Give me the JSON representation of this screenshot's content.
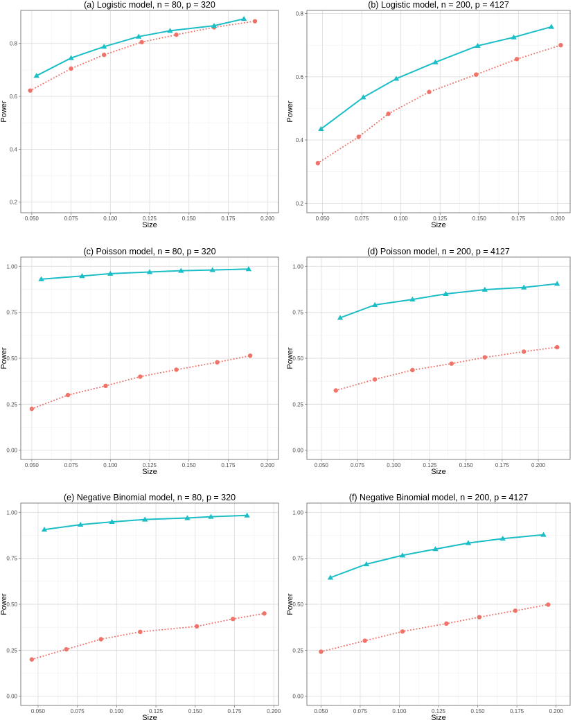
{
  "colors": {
    "series_a": "#1bbec6",
    "series_b": "#f0736a"
  },
  "chart_data": [
    {
      "type": "line",
      "title": "(a) Logistic model, n = 80, p = 320",
      "xlabel": "Size",
      "ylabel": "Power",
      "xlim": [
        0.043,
        0.207
      ],
      "ylim": [
        0.16,
        0.925
      ],
      "xticks": [
        0.05,
        0.075,
        0.1,
        0.125,
        0.15,
        0.175,
        0.2
      ],
      "xtick_labels": [
        "0.050",
        "0.075",
        "0.100",
        "0.125",
        "0.150",
        "0.175",
        "0.200"
      ],
      "yticks": [
        0.2,
        0.4,
        0.6,
        0.8
      ],
      "ytick_labels": [
        "0.2",
        "0.4",
        "0.6",
        "0.8"
      ],
      "series": [
        {
          "marker": "triangle",
          "line": "solid",
          "x": [
            0.053,
            0.075,
            0.096,
            0.118,
            0.138,
            0.166,
            0.185
          ],
          "y": [
            0.678,
            0.745,
            0.788,
            0.826,
            0.848,
            0.867,
            0.893
          ]
        },
        {
          "marker": "circle",
          "line": "dotted",
          "x": [
            0.049,
            0.075,
            0.096,
            0.12,
            0.142,
            0.166,
            0.192
          ],
          "y": [
            0.622,
            0.705,
            0.757,
            0.805,
            0.833,
            0.861,
            0.884
          ]
        }
      ]
    },
    {
      "type": "line",
      "title": "(b) Logistic model, n = 200, p = 4127",
      "xlabel": "Size",
      "ylabel": "Power",
      "xlim": [
        0.04,
        0.208
      ],
      "ylim": [
        0.17,
        0.81
      ],
      "xticks": [
        0.05,
        0.075,
        0.1,
        0.125,
        0.15,
        0.175,
        0.2
      ],
      "xtick_labels": [
        "0.050",
        "0.075",
        "0.100",
        "0.125",
        "0.150",
        "0.175",
        "0.200"
      ],
      "yticks": [
        0.2,
        0.4,
        0.6,
        0.8
      ],
      "ytick_labels": [
        "0.2",
        "0.4",
        "0.6",
        "0.8"
      ],
      "series": [
        {
          "marker": "triangle",
          "line": "solid",
          "x": [
            0.049,
            0.076,
            0.097,
            0.122,
            0.149,
            0.172,
            0.196
          ],
          "y": [
            0.435,
            0.535,
            0.594,
            0.646,
            0.698,
            0.725,
            0.758
          ]
        },
        {
          "marker": "circle",
          "line": "dotted",
          "x": [
            0.047,
            0.073,
            0.092,
            0.118,
            0.148,
            0.174,
            0.202
          ],
          "y": [
            0.327,
            0.41,
            0.483,
            0.552,
            0.607,
            0.656,
            0.7
          ]
        }
      ]
    },
    {
      "type": "line",
      "title": "(c) Poisson model, n = 80, p = 320",
      "xlabel": "Size",
      "ylabel": "Power",
      "xlim": [
        0.043,
        0.207
      ],
      "ylim": [
        -0.05,
        1.05
      ],
      "xticks": [
        0.05,
        0.075,
        0.1,
        0.125,
        0.15,
        0.175,
        0.2
      ],
      "xtick_labels": [
        "0.050",
        "0.075",
        "0.100",
        "0.125",
        "0.150",
        "0.175",
        "0.200"
      ],
      "yticks": [
        0,
        0.25,
        0.5,
        0.75,
        1
      ],
      "ytick_labels": [
        "0.00",
        "0.25",
        "0.50",
        "0.75",
        "1.00"
      ],
      "series": [
        {
          "marker": "triangle",
          "line": "solid",
          "x": [
            0.056,
            0.082,
            0.1,
            0.125,
            0.145,
            0.165,
            0.188
          ],
          "y": [
            0.93,
            0.947,
            0.96,
            0.969,
            0.976,
            0.98,
            0.985
          ]
        },
        {
          "marker": "circle",
          "line": "dotted",
          "x": [
            0.05,
            0.073,
            0.097,
            0.119,
            0.142,
            0.168,
            0.189
          ],
          "y": [
            0.225,
            0.3,
            0.35,
            0.4,
            0.438,
            0.478,
            0.514
          ]
        }
      ]
    },
    {
      "type": "line",
      "title": "(d) Poisson model, n = 200, p = 4127",
      "xlabel": "Size",
      "ylabel": "Power",
      "xlim": [
        0.04,
        0.222
      ],
      "ylim": [
        -0.05,
        1.05
      ],
      "xticks": [
        0.05,
        0.075,
        0.1,
        0.125,
        0.15,
        0.175,
        0.2
      ],
      "xtick_labels": [
        "0.050",
        "0.075",
        "0.100",
        "0.125",
        "0.150",
        "0.175",
        "0.200"
      ],
      "yticks": [
        0,
        0.25,
        0.5,
        0.75,
        1
      ],
      "ytick_labels": [
        "0.00",
        "0.25",
        "0.50",
        "0.75",
        "1.00"
      ],
      "series": [
        {
          "marker": "triangle",
          "line": "solid",
          "x": [
            0.063,
            0.087,
            0.113,
            0.136,
            0.163,
            0.19,
            0.213
          ],
          "y": [
            0.72,
            0.79,
            0.82,
            0.85,
            0.873,
            0.885,
            0.905
          ]
        },
        {
          "marker": "circle",
          "line": "dotted",
          "x": [
            0.06,
            0.087,
            0.113,
            0.14,
            0.163,
            0.19,
            0.213
          ],
          "y": [
            0.325,
            0.385,
            0.436,
            0.471,
            0.505,
            0.536,
            0.56
          ]
        }
      ]
    },
    {
      "type": "line",
      "title": "(e) Negative Binomial model, n = 80, p = 320",
      "xlabel": "Size",
      "ylabel": "Power",
      "xlim": [
        0.039,
        0.203
      ],
      "ylim": [
        -0.05,
        1.05
      ],
      "xticks": [
        0.05,
        0.075,
        0.1,
        0.125,
        0.15,
        0.175,
        0.2
      ],
      "xtick_labels": [
        "0.050",
        "0.075",
        "0.100",
        "0.125",
        "0.150",
        "0.175",
        "0.200"
      ],
      "yticks": [
        0,
        0.25,
        0.5,
        0.75,
        1
      ],
      "ytick_labels": [
        "0.00",
        "0.25",
        "0.50",
        "0.75",
        "1.00"
      ],
      "series": [
        {
          "marker": "triangle",
          "line": "solid",
          "x": [
            0.054,
            0.077,
            0.097,
            0.118,
            0.145,
            0.16,
            0.183
          ],
          "y": [
            0.906,
            0.933,
            0.948,
            0.961,
            0.969,
            0.976,
            0.983
          ]
        },
        {
          "marker": "circle",
          "line": "dotted",
          "x": [
            0.046,
            0.068,
            0.09,
            0.115,
            0.151,
            0.174,
            0.194
          ],
          "y": [
            0.2,
            0.255,
            0.31,
            0.35,
            0.38,
            0.42,
            0.45
          ]
        }
      ]
    },
    {
      "type": "line",
      "title": "(f) Negative Binomial model, n = 200, p = 4127",
      "xlabel": "Size",
      "ylabel": "Power",
      "xlim": [
        0.041,
        0.209
      ],
      "ylim": [
        -0.05,
        1.05
      ],
      "xticks": [
        0.05,
        0.075,
        0.1,
        0.125,
        0.15,
        0.175,
        0.2
      ],
      "xtick_labels": [
        "0.050",
        "0.075",
        "0.100",
        "0.125",
        "0.150",
        "0.175",
        "0.200"
      ],
      "yticks": [
        0,
        0.25,
        0.5,
        0.75,
        1
      ],
      "ytick_labels": [
        "0.00",
        "0.25",
        "0.50",
        "0.75",
        "1.00"
      ],
      "series": [
        {
          "marker": "triangle",
          "line": "solid",
          "x": [
            0.056,
            0.079,
            0.102,
            0.123,
            0.144,
            0.166,
            0.192
          ],
          "y": [
            0.645,
            0.718,
            0.766,
            0.8,
            0.833,
            0.857,
            0.878
          ]
        },
        {
          "marker": "circle",
          "line": "dotted",
          "x": [
            0.05,
            0.078,
            0.102,
            0.13,
            0.151,
            0.174,
            0.195
          ],
          "y": [
            0.242,
            0.302,
            0.352,
            0.395,
            0.43,
            0.465,
            0.498
          ]
        }
      ]
    }
  ]
}
